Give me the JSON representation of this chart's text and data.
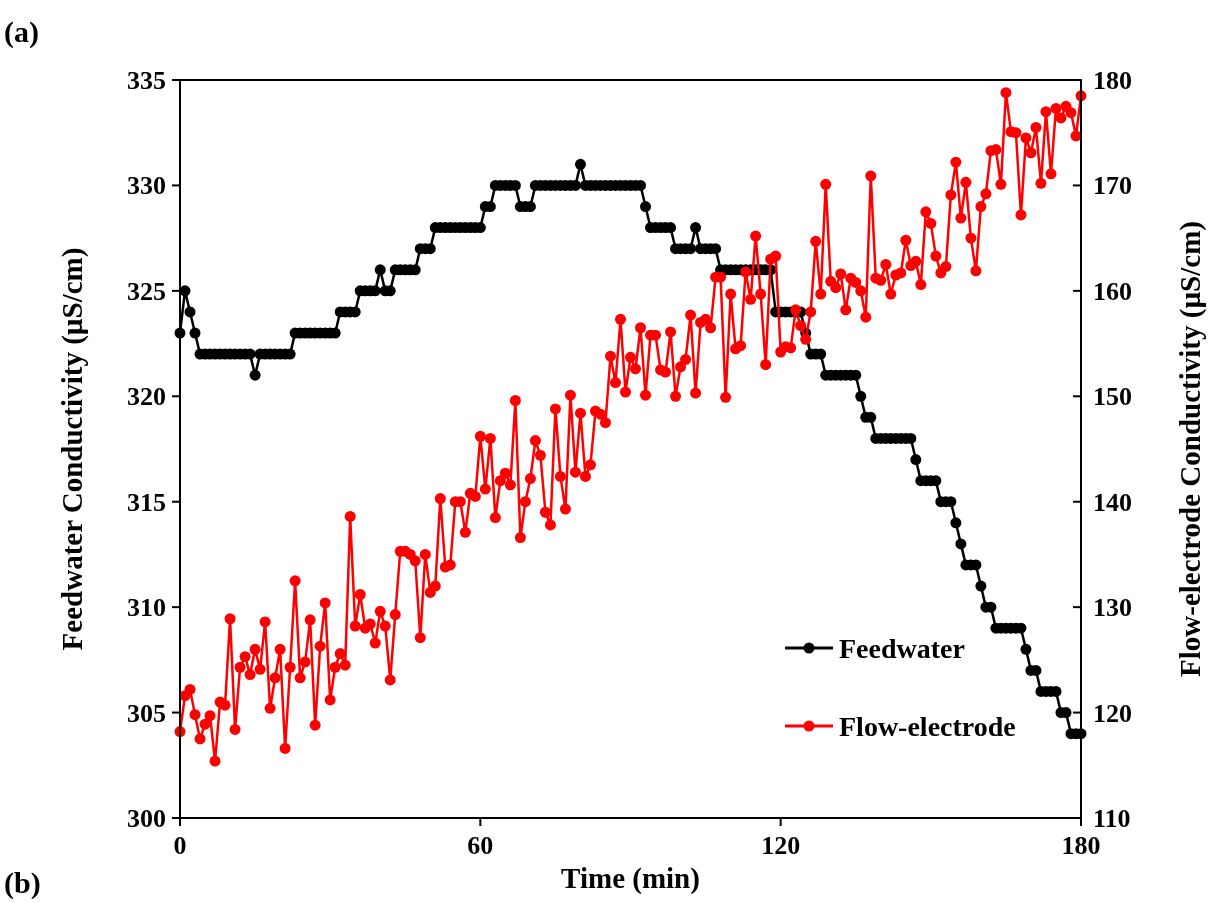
{
  "chart_data": {
    "type": "line",
    "xlabel": "Time (min)",
    "ylabel": "Feedwater Conductivity (µS/cm)",
    "y2label": "Flow-electrode Conductivity (µS/cm)",
    "annotations": [
      "(a)",
      "(b)"
    ],
    "x": [
      0,
      1,
      2,
      3,
      4,
      5,
      6,
      7,
      8,
      9,
      10,
      11,
      12,
      13,
      14,
      15,
      16,
      17,
      18,
      19,
      20,
      21,
      22,
      23,
      24,
      25,
      26,
      27,
      28,
      29,
      30,
      31,
      32,
      33,
      34,
      35,
      36,
      37,
      38,
      39,
      40,
      41,
      42,
      43,
      44,
      45,
      46,
      47,
      48,
      49,
      50,
      51,
      52,
      53,
      54,
      55,
      56,
      57,
      58,
      59,
      60,
      61,
      62,
      63,
      64,
      65,
      66,
      67,
      68,
      69,
      70,
      71,
      72,
      73,
      74,
      75,
      76,
      77,
      78,
      79,
      80,
      81,
      82,
      83,
      84,
      85,
      86,
      87,
      88,
      89,
      90,
      91,
      92,
      93,
      94,
      95,
      96,
      97,
      98,
      99,
      100,
      101,
      102,
      103,
      104,
      105,
      106,
      107,
      108,
      109,
      110,
      111,
      112,
      113,
      114,
      115,
      116,
      117,
      118,
      119,
      120,
      121,
      122,
      123,
      124,
      125,
      126,
      127,
      128,
      129,
      130,
      131,
      132,
      133,
      134,
      135,
      136,
      137,
      138,
      139,
      140,
      141,
      142,
      143,
      144,
      145,
      146,
      147,
      148,
      149,
      150,
      151,
      152,
      153,
      154,
      155,
      156,
      157,
      158,
      159,
      160,
      161,
      162,
      163,
      164,
      165,
      166,
      167,
      168,
      169,
      170,
      171,
      172,
      173,
      174,
      175,
      176,
      177,
      178,
      179,
      180
    ],
    "series": [
      {
        "name": "Feedwater",
        "color": "#000000",
        "values": [
          323,
          325,
          324,
          323,
          322,
          322,
          322,
          322,
          322,
          322,
          322,
          322,
          322,
          322,
          322,
          321,
          322,
          322,
          322,
          322,
          322,
          322,
          322,
          323,
          323,
          323,
          323,
          323,
          323,
          323,
          323,
          323,
          324,
          324,
          324,
          324,
          325,
          325,
          325,
          325,
          326,
          325,
          325,
          326,
          326,
          326,
          326,
          326,
          327,
          327,
          327,
          328,
          328,
          328,
          328,
          328,
          328,
          328,
          328,
          328,
          328,
          329,
          329,
          330,
          330,
          330,
          330,
          330,
          329,
          329,
          329,
          330,
          330,
          330,
          330,
          330,
          330,
          330,
          330,
          330,
          331,
          330,
          330,
          330,
          330,
          330,
          330,
          330,
          330,
          330,
          330,
          330,
          330,
          329,
          328,
          328,
          328,
          328,
          328,
          327,
          327,
          327,
          327,
          328,
          327,
          327,
          327,
          327,
          326,
          326,
          326,
          326,
          326,
          326,
          326,
          326,
          326,
          326,
          326,
          324,
          324,
          324,
          324,
          324,
          324,
          323,
          322,
          322,
          322,
          321,
          321,
          321,
          321,
          321,
          321,
          321,
          320,
          319,
          319,
          318,
          318,
          318,
          318,
          318,
          318,
          318,
          318,
          317,
          316,
          316,
          316,
          316,
          315,
          315,
          315,
          314,
          313,
          312,
          312,
          312,
          311,
          310,
          310,
          309,
          309,
          309,
          309,
          309,
          309,
          308,
          307,
          307,
          306,
          306,
          306,
          306,
          305,
          305,
          304,
          304,
          304
        ]
      },
      {
        "name": "Flow-electrode",
        "color": "#ff0000",
        "axis": "y2",
        "values": [
          118.2,
          121.6,
          122.2,
          119.8,
          117.5,
          118.9,
          119.7,
          115.4,
          121,
          120.7,
          128.9,
          118.4,
          124.3,
          125.3,
          123.6,
          126,
          124.1,
          128.6,
          120.4,
          123.3,
          126,
          116.6,
          124.3,
          132.5,
          123.3,
          124.8,
          128.8,
          118.8,
          126.3,
          130.4,
          121.2,
          124.3,
          125.6,
          124.5,
          138.6,
          128.2,
          131.2,
          128,
          128.4,
          126.6,
          129.6,
          128.2,
          123.1,
          129.3,
          135.3,
          135.3,
          135,
          134.4,
          127.1,
          135,
          131.4,
          132,
          140.3,
          133.8,
          134,
          140,
          140,
          137.1,
          140.8,
          140.5,
          146.2,
          141.2,
          146,
          138.5,
          142,
          142.7,
          141.6,
          149.6,
          136.6,
          140,
          142.2,
          145.8,
          144.4,
          139,
          137.8,
          148.8,
          142.4,
          139.3,
          150.1,
          142.8,
          148.4,
          142.4,
          143.5,
          148.6,
          148.3,
          147.5,
          153.8,
          151.3,
          157.3,
          150.4,
          153.7,
          152.6,
          156.5,
          150.1,
          155.8,
          155.8,
          152.5,
          152.3,
          156.1,
          150,
          152.8,
          153.5,
          157.7,
          150.3,
          157,
          157.3,
          156.5,
          161.3,
          161.3,
          149.9,
          159.7,
          154.5,
          154.8,
          161.8,
          159.2,
          165.2,
          159.7,
          153,
          163,
          163.3,
          154.2,
          154.7,
          154.6,
          158.2,
          156.7,
          155.4,
          158,
          164.7,
          159.7,
          170.1,
          160.9,
          160.3,
          161.6,
          158.2,
          161.2,
          160.8,
          160,
          157.5,
          170.9,
          161.2,
          161,
          162.5,
          159.7,
          161.5,
          161.7,
          164.8,
          162.4,
          162.8,
          160.6,
          167.5,
          166.4,
          163.3,
          161.7,
          162.3,
          169.1,
          172.2,
          166.9,
          170.3,
          165,
          161.9,
          168,
          169.2,
          173.3,
          173.4,
          170.1,
          178.8,
          175.1,
          175,
          167.2,
          174.5,
          173.1,
          175.5,
          170.2,
          177,
          171.1,
          177.3,
          176.4,
          177.5,
          176.9,
          174.7,
          178.5
        ]
      }
    ],
    "xlim": [
      0,
      180
    ],
    "xticks": [
      0,
      60,
      120,
      180
    ],
    "ylim": [
      300,
      335
    ],
    "yticks": [
      300,
      305,
      310,
      315,
      320,
      325,
      330,
      335
    ],
    "y2lim": [
      110,
      180
    ],
    "y2ticks": [
      110,
      120,
      130,
      140,
      150,
      160,
      170,
      180
    ],
    "legend": "bottom right",
    "marker": "circle",
    "line_style": "solid"
  }
}
